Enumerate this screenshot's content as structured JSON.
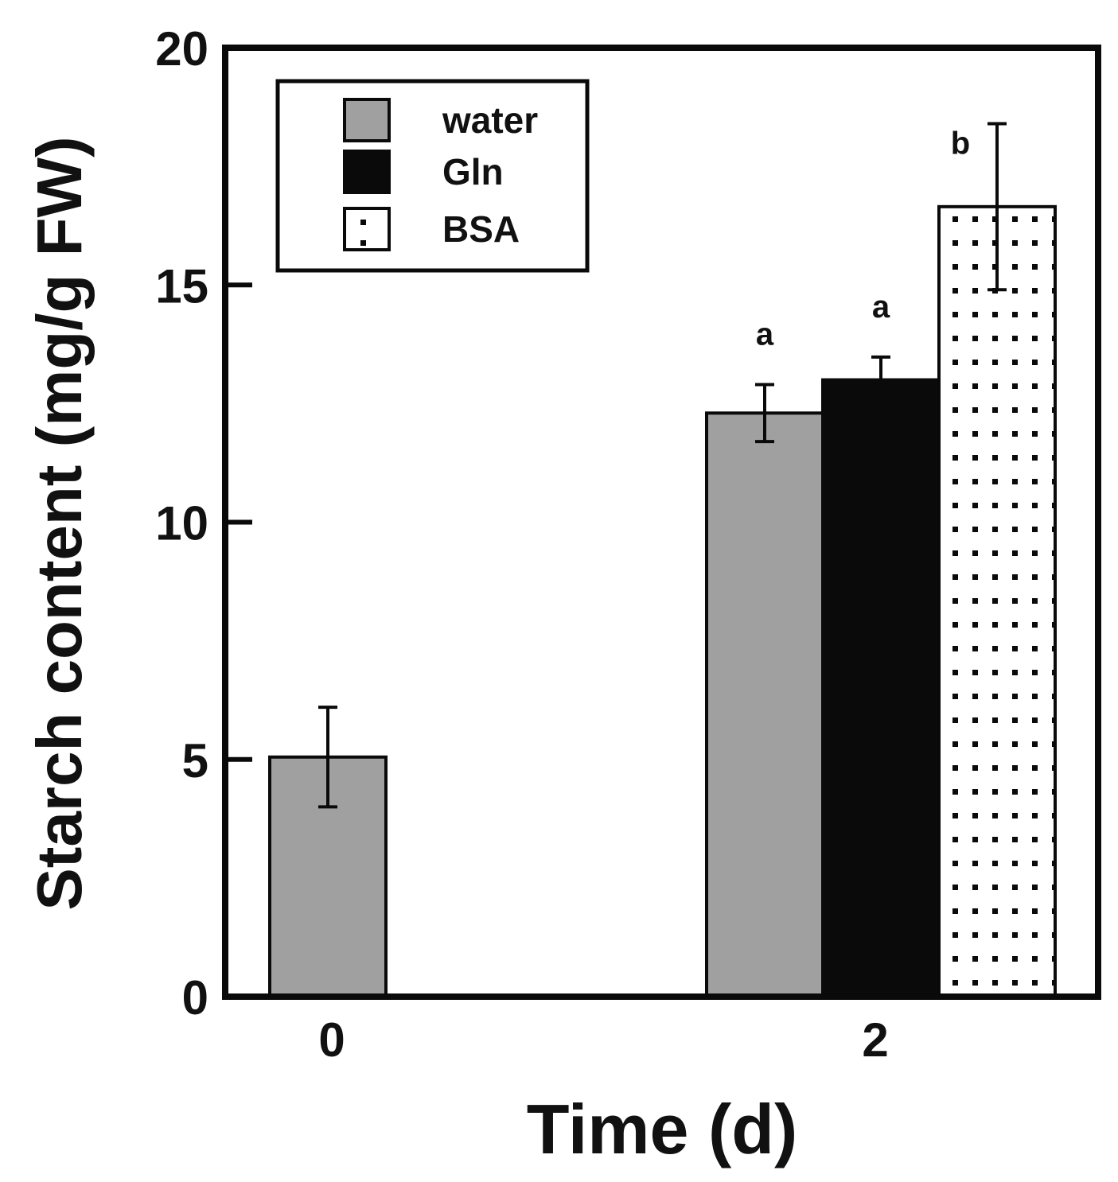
{
  "chart_data": {
    "type": "bar",
    "title": "",
    "xlabel": "Time (d)",
    "ylabel": "Starch content (mg/g FW)",
    "ylim": [
      0,
      20
    ],
    "yticks": [
      0,
      5,
      10,
      15,
      20
    ],
    "categories": [
      "0",
      "2"
    ],
    "series": [
      {
        "name": "water",
        "color": "#a0a0a0",
        "pattern": "solid",
        "values": [
          5.05,
          12.3
        ],
        "errors": [
          1.05,
          0.6
        ],
        "labels": [
          "",
          "a"
        ]
      },
      {
        "name": "Gln",
        "color": "#0a0a0a",
        "pattern": "solid",
        "values": [
          null,
          13.0
        ],
        "errors": [
          null,
          0.48
        ],
        "labels": [
          "",
          "a"
        ]
      },
      {
        "name": "BSA",
        "color": "#ffffff",
        "pattern": "dotted",
        "values": [
          null,
          16.65
        ],
        "errors": [
          null,
          1.75
        ],
        "labels": [
          "",
          "b"
        ]
      }
    ],
    "legend": {
      "position": "top-left"
    },
    "grid": false
  }
}
